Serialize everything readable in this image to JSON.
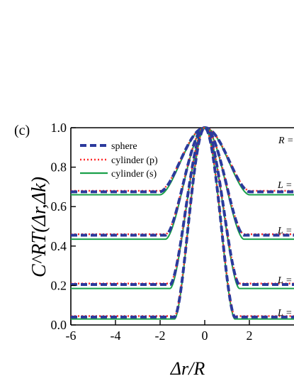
{
  "panel_label": "(c)",
  "chart_data": {
    "type": "line",
    "xlabel": "Δr/R",
    "ylabel": "C^RT(Δr,Δk)",
    "xlim": [
      -6,
      4
    ],
    "ylim": [
      0,
      1.0
    ],
    "xticks": [
      "-6",
      "-4",
      "-2",
      "0",
      "2"
    ],
    "yticks": [
      "0.0",
      "0.2",
      "0.4",
      "0.6",
      "0.8",
      "1.0"
    ],
    "grid": false,
    "legend_position": "top-left",
    "series": [
      {
        "name": "sphere",
        "color": "#2b3a9c",
        "style": "dashed"
      },
      {
        "name": "cylinder (p)",
        "color": "#ff2a2a",
        "style": "dotted"
      },
      {
        "name": "cylinder (s)",
        "color": "#1aa04a",
        "style": "solid"
      }
    ],
    "annotations": [
      "R =",
      "L =",
      "L =",
      "L =",
      "L ="
    ],
    "curves": [
      {
        "baseline": {
          "sphere": 0.675,
          "cylinder (p)": 0.68,
          "cylinder (s)": 0.66
        },
        "peak": 1.0,
        "halfwidth": 2.0
      },
      {
        "baseline": {
          "sphere": 0.455,
          "cylinder (p)": 0.46,
          "cylinder (s)": 0.435
        },
        "peak": 1.0,
        "halfwidth": 1.75
      },
      {
        "baseline": {
          "sphere": 0.205,
          "cylinder (p)": 0.21,
          "cylinder (s)": 0.185
        },
        "peak": 1.0,
        "halfwidth": 1.55
      },
      {
        "baseline": {
          "sphere": 0.04,
          "cylinder (p)": 0.045,
          "cylinder (s)": 0.03
        },
        "peak": 1.0,
        "halfwidth": 1.35
      }
    ]
  }
}
